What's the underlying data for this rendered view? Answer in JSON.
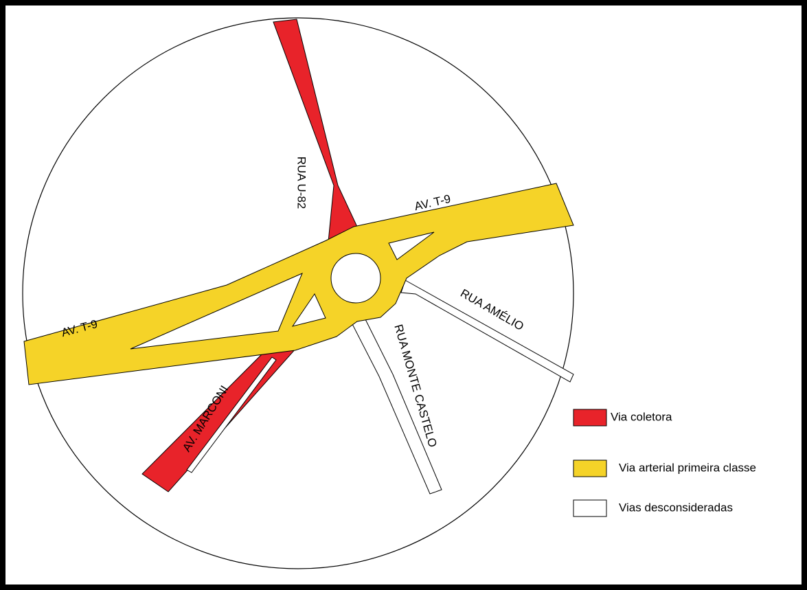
{
  "streets": [
    {
      "label": "RUA U-82"
    },
    {
      "label": "AV. T-9"
    },
    {
      "label": "AV. T-9"
    },
    {
      "label": "RUA AMÉLIO"
    },
    {
      "label": "RUA MONTE CASTELO"
    },
    {
      "label": "AV. MARCONI"
    }
  ],
  "legend": [
    {
      "label": "Via coletora",
      "color": "#e8232a"
    },
    {
      "label": "Via arterial primeira classe",
      "color": "#f5d328"
    },
    {
      "label": "Vias desconsideradas",
      "color": "#ffffff"
    }
  ]
}
